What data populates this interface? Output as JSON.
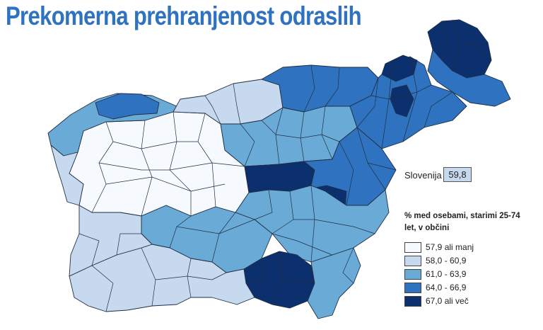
{
  "title": "Prekomerna prehranjenost odraslih",
  "national": {
    "label": "Slovenija",
    "value": "59,8"
  },
  "legend": {
    "title": "% med osebami, starimi 25-74 let, v občini",
    "items": [
      {
        "label": "57,9 ali manj",
        "color": "#f6f9fd"
      },
      {
        "label": "58,0 - 60,9",
        "color": "#c6d9ee"
      },
      {
        "label": "61,0 - 63,9",
        "color": "#6aaad6"
      },
      {
        "label": "64,0 - 66,9",
        "color": "#2f72bf"
      },
      {
        "label": "67,0 ali več",
        "color": "#0c2f6e"
      }
    ]
  }
}
